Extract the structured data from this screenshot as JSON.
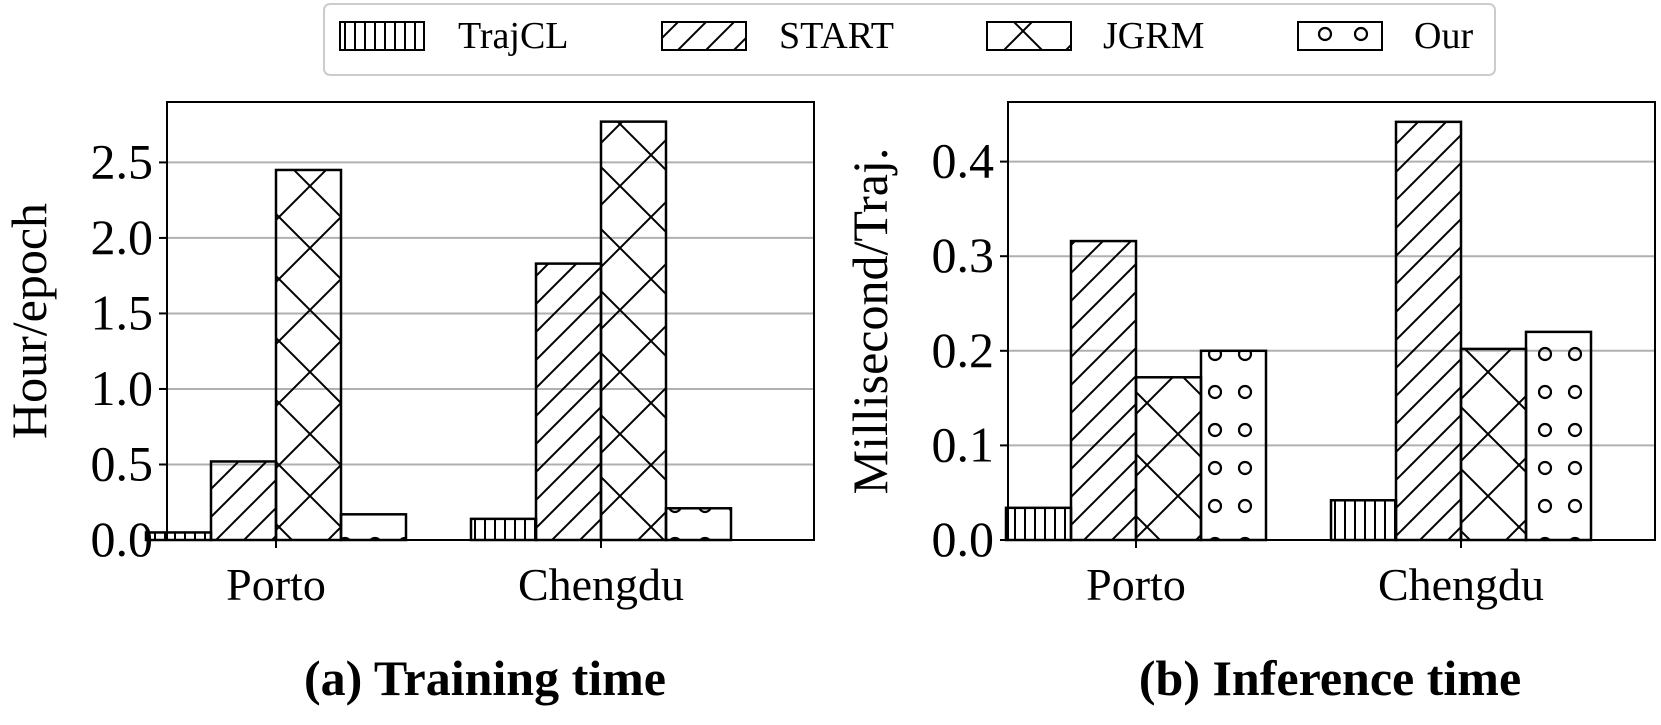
{
  "legend": {
    "entries": [
      {
        "label": "TrajCL",
        "pattern": "vertical"
      },
      {
        "label": "START",
        "pattern": "diagonal"
      },
      {
        "label": "JGRM",
        "pattern": "cross"
      },
      {
        "label": "Our",
        "pattern": "circles"
      }
    ],
    "placement": "top-center"
  },
  "colors": {
    "bar_edge": "#000000",
    "bar_fill": "#ffffff",
    "grid": "#b0b0b0",
    "legend_border": "#cccccc"
  },
  "chart_data": [
    {
      "type": "bar",
      "title": "(a) Training time",
      "xlabel": "",
      "ylabel": "Hour/epoch",
      "categories": [
        "Porto",
        "Chengdu"
      ],
      "ylim": [
        0,
        2.9
      ],
      "yticks": [
        0.0,
        0.5,
        1.0,
        1.5,
        2.0,
        2.5
      ],
      "ytick_labels": [
        "0.0",
        "0.5",
        "1.0",
        "1.5",
        "2.0",
        "2.5"
      ],
      "grid": true,
      "series": [
        {
          "name": "TrajCL",
          "values": [
            0.05,
            0.14
          ]
        },
        {
          "name": "START",
          "values": [
            0.52,
            1.83
          ]
        },
        {
          "name": "JGRM",
          "values": [
            2.45,
            2.77
          ]
        },
        {
          "name": "Our",
          "values": [
            0.17,
            0.21
          ]
        }
      ]
    },
    {
      "type": "bar",
      "title": "(b) Inference time",
      "xlabel": "",
      "ylabel": "Millisecond/Traj.",
      "categories": [
        "Porto",
        "Chengdu"
      ],
      "ylim": [
        0,
        0.463
      ],
      "yticks": [
        0.0,
        0.1,
        0.2,
        0.3,
        0.4
      ],
      "ytick_labels": [
        "0.0",
        "0.1",
        "0.2",
        "0.3",
        "0.4"
      ],
      "grid": true,
      "series": [
        {
          "name": "TrajCL",
          "values": [
            0.034,
            0.042
          ]
        },
        {
          "name": "START",
          "values": [
            0.316,
            0.442
          ]
        },
        {
          "name": "JGRM",
          "values": [
            0.172,
            0.202
          ]
        },
        {
          "name": "Our",
          "values": [
            0.2,
            0.22
          ]
        }
      ]
    }
  ]
}
